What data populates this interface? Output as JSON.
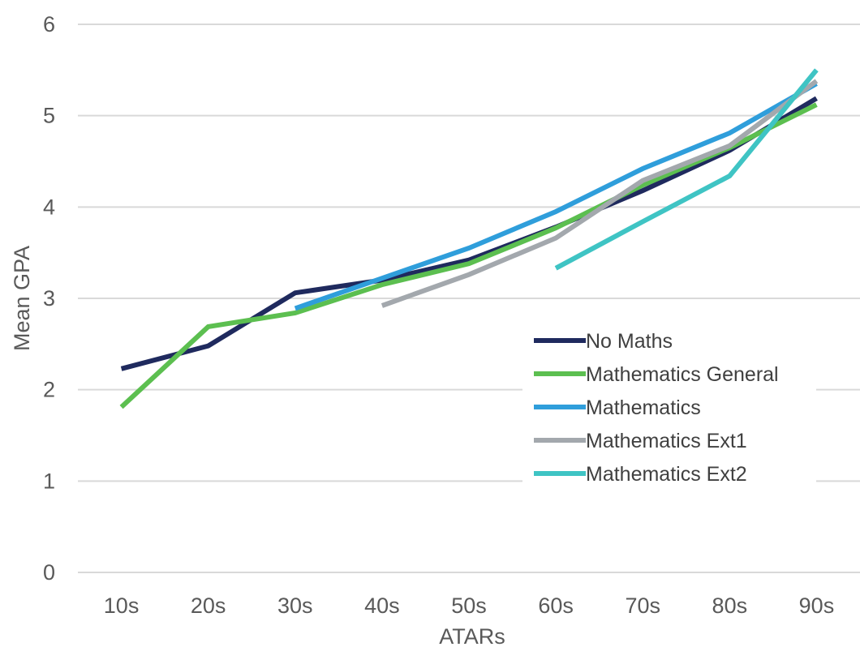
{
  "chart_data": {
    "type": "line",
    "xlabel": "ATARs",
    "ylabel": "Mean GPA",
    "ylim": [
      0,
      6
    ],
    "yticks": [
      "0",
      "1",
      "2",
      "3",
      "4",
      "5",
      "6"
    ],
    "categories": [
      "10s",
      "20s",
      "30s",
      "40s",
      "50s",
      "60s",
      "70s",
      "80s",
      "90s"
    ],
    "grid": "horizontal",
    "legend_position": "right",
    "series": [
      {
        "name": "No Maths",
        "color": "#1f2a5e",
        "values": [
          2.23,
          2.48,
          3.06,
          3.2,
          3.42,
          3.78,
          4.18,
          4.62,
          5.19
        ]
      },
      {
        "name": "Mathematics General",
        "color": "#5cbf50",
        "values": [
          1.81,
          2.69,
          2.84,
          3.15,
          3.38,
          3.77,
          4.24,
          4.65,
          5.12
        ]
      },
      {
        "name": "Mathematics",
        "color": "#2f9edb",
        "values": [
          null,
          null,
          2.89,
          3.22,
          3.55,
          3.95,
          4.42,
          4.81,
          5.35
        ]
      },
      {
        "name": "Mathematics Ext1",
        "color": "#a3a8ad",
        "values": [
          null,
          null,
          null,
          2.92,
          3.26,
          3.66,
          4.29,
          4.67,
          5.38
        ]
      },
      {
        "name": "Mathematics Ext2",
        "color": "#3fc4c4",
        "values": [
          null,
          null,
          null,
          null,
          null,
          3.33,
          3.84,
          4.34,
          5.5
        ]
      }
    ]
  }
}
